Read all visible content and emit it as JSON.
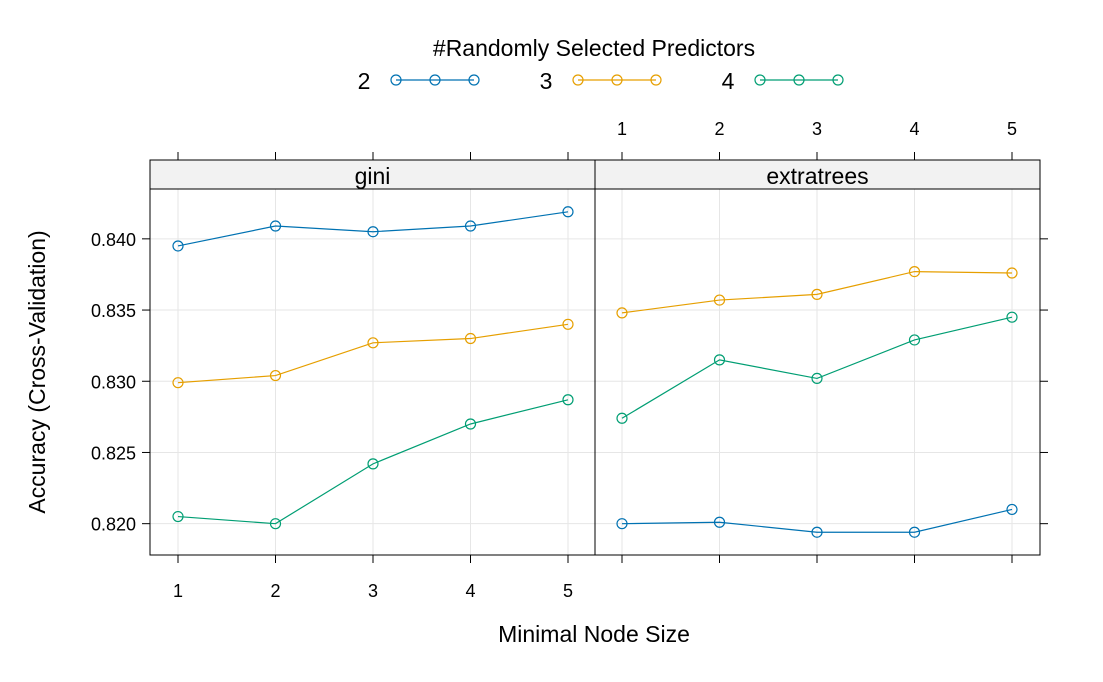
{
  "chart_data": {
    "type": "line",
    "legend": {
      "title": "#Randomly Selected Predictors",
      "placement": "top",
      "entries": [
        "2",
        "3",
        "4"
      ]
    },
    "xlabel": "Minimal Node Size",
    "ylabel": "Accuracy (Cross-Validation)",
    "x": [
      1,
      2,
      3,
      4,
      5
    ],
    "x_tick_labels": [
      "1",
      "2",
      "3",
      "4",
      "5"
    ],
    "ylim": [
      0.8178,
      0.8435
    ],
    "y_ticks": [
      0.82,
      0.825,
      0.83,
      0.835,
      0.84
    ],
    "y_tick_labels": [
      "0.820",
      "0.825",
      "0.830",
      "0.835",
      "0.840"
    ],
    "grid": true,
    "colors": {
      "2": "#0072b2",
      "3": "#e69f00",
      "4": "#009e73"
    },
    "panels": [
      {
        "strip": "gini",
        "series": [
          {
            "name": "2",
            "values": [
              0.8395,
              0.8409,
              0.8405,
              0.8409,
              0.8419
            ]
          },
          {
            "name": "3",
            "values": [
              0.8299,
              0.8304,
              0.8327,
              0.833,
              0.834
            ]
          },
          {
            "name": "4",
            "values": [
              0.8205,
              0.82,
              0.8242,
              0.827,
              0.8287
            ]
          }
        ]
      },
      {
        "strip": "extratrees",
        "series": [
          {
            "name": "2",
            "values": [
              0.82,
              0.8201,
              0.8194,
              0.8194,
              0.821
            ]
          },
          {
            "name": "3",
            "values": [
              0.8348,
              0.8357,
              0.8361,
              0.8377,
              0.8376
            ]
          },
          {
            "name": "4",
            "values": [
              0.8274,
              0.8315,
              0.8302,
              0.8329,
              0.8345
            ]
          }
        ]
      }
    ]
  }
}
